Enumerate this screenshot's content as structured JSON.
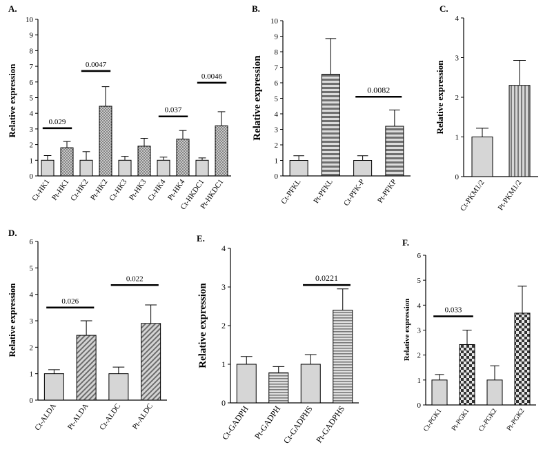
{
  "figure": {
    "panels": [
      {
        "id": "A",
        "label": "A.",
        "ylabel": "Relative expression",
        "ylim": [
          0,
          10
        ],
        "yticks": [
          0,
          1,
          2,
          3,
          4,
          5,
          6,
          7,
          8,
          9,
          10
        ],
        "categories": [
          "Ct-HK1",
          "Pt-HK1",
          "Ct-HK2",
          "Pt-HK2",
          "Ct-HK3",
          "Pt-HK3",
          "Ct-HK4",
          "Pt-HK4",
          "Ct-HKDC1",
          "Pt-HKDC1"
        ],
        "values": [
          1.0,
          1.8,
          1.0,
          4.45,
          1.0,
          1.9,
          1.0,
          2.35,
          1.0,
          3.2
        ],
        "errors": [
          0.3,
          0.4,
          0.55,
          1.25,
          0.25,
          0.5,
          0.2,
          0.55,
          0.15,
          0.9
        ],
        "patterns": [
          "plain",
          "dots",
          "plain",
          "dots",
          "plain",
          "dots",
          "plain",
          "dots",
          "plain",
          "dots"
        ],
        "significance": [
          {
            "from": 0,
            "to": 1,
            "y": 3.05,
            "label": "0.029"
          },
          {
            "from": 2,
            "to": 3,
            "y": 6.7,
            "label": "0.0047"
          },
          {
            "from": 6,
            "to": 7,
            "y": 3.8,
            "label": "0.037"
          },
          {
            "from": 8,
            "to": 9,
            "y": 5.95,
            "label": "0.0046"
          }
        ]
      },
      {
        "id": "B",
        "label": "B.",
        "ylabel": "Relative expression",
        "ylim": [
          0,
          10
        ],
        "yticks": [
          0,
          1,
          2,
          3,
          4,
          5,
          6,
          7,
          8,
          9,
          10
        ],
        "categories": [
          "Ct-PFKL",
          "Pt-PFKL",
          "Ct-PFK-P",
          "Pt-PFKP"
        ],
        "values": [
          1.0,
          6.55,
          1.0,
          3.2
        ],
        "errors": [
          0.3,
          2.3,
          0.3,
          1.05
        ],
        "patterns": [
          "plain",
          "hstripes",
          "plain",
          "hstripes"
        ],
        "significance": [
          {
            "from": 2,
            "to": 3,
            "y": 5.1,
            "label": "0.0082"
          }
        ]
      },
      {
        "id": "C",
        "label": "C.",
        "ylabel": "Relative expression",
        "ylim": [
          0,
          4
        ],
        "yticks": [
          0,
          1,
          2,
          3,
          4
        ],
        "categories": [
          "Ct-PKM1/2",
          "Pt-PKM1/2"
        ],
        "values": [
          1.0,
          2.3
        ],
        "errors": [
          0.22,
          0.63
        ],
        "patterns": [
          "plain",
          "vstripes"
        ],
        "significance": []
      },
      {
        "id": "D",
        "label": "D.",
        "ylabel": "Relative expression",
        "ylim": [
          0,
          6
        ],
        "yticks": [
          0,
          1,
          2,
          3,
          4,
          5,
          6
        ],
        "categories": [
          "Ct-ALDA",
          "Pt-ALDA",
          "Ct-ALDC",
          "Pt-ALDC"
        ],
        "values": [
          1.0,
          2.45,
          1.0,
          2.9
        ],
        "errors": [
          0.15,
          0.55,
          0.25,
          0.7
        ],
        "patterns": [
          "plain",
          "diagonal",
          "plain",
          "diagonal"
        ],
        "significance": [
          {
            "from": 0,
            "to": 1,
            "y": 3.5,
            "label": "0.026"
          },
          {
            "from": 2,
            "to": 3,
            "y": 4.35,
            "label": "0.022"
          }
        ]
      },
      {
        "id": "E",
        "label": "E.",
        "ylabel": "Relative expression",
        "ylim": [
          0,
          4
        ],
        "yticks": [
          0,
          1,
          2,
          3,
          4
        ],
        "categories": [
          "Ct-GADPH",
          "Pt-GADPH",
          "Ct-GADPHS",
          "Pt-GADPHS"
        ],
        "values": [
          1.0,
          0.78,
          1.0,
          2.4
        ],
        "errors": [
          0.2,
          0.16,
          0.25,
          0.55
        ],
        "patterns": [
          "plain",
          "hstripes-fine",
          "plain",
          "hstripes-fine"
        ],
        "significance": [
          {
            "from": 2,
            "to": 3,
            "y": 3.05,
            "label": "0.0221"
          }
        ]
      },
      {
        "id": "F",
        "label": "F.",
        "ylabel": "Relative expression",
        "ylim": [
          0,
          6
        ],
        "yticks": [
          0,
          1,
          2,
          3,
          4,
          5,
          6
        ],
        "categories": [
          "Ct-PGK1",
          "Pt-PGK1",
          "Ct-PGK2",
          "Pt-PGK2"
        ],
        "values": [
          1.0,
          2.42,
          1.0,
          3.68
        ],
        "errors": [
          0.22,
          0.58,
          0.57,
          1.08
        ],
        "patterns": [
          "plain",
          "checker",
          "plain",
          "checker"
        ],
        "significance": [
          {
            "from": 0,
            "to": 1,
            "y": 3.55,
            "label": "0.033"
          }
        ]
      }
    ]
  },
  "chart_data": [
    {
      "type": "bar",
      "title": "A.",
      "xlabel": "",
      "ylabel": "Relative expression",
      "ylim": [
        0,
        10
      ],
      "categories": [
        "Ct-HK1",
        "Pt-HK1",
        "Ct-HK2",
        "Pt-HK2",
        "Ct-HK3",
        "Pt-HK3",
        "Ct-HK4",
        "Pt-HK4",
        "Ct-HKDC1",
        "Pt-HKDC1"
      ],
      "values": [
        1.0,
        1.8,
        1.0,
        4.45,
        1.0,
        1.9,
        1.0,
        2.35,
        1.0,
        3.2
      ],
      "annotations": [
        "0.029",
        "0.0047",
        "0.037",
        "0.0046"
      ]
    },
    {
      "type": "bar",
      "title": "B.",
      "xlabel": "",
      "ylabel": "Relative expression",
      "ylim": [
        0,
        10
      ],
      "categories": [
        "Ct-PFKL",
        "Pt-PFKL",
        "Ct-PFK-P",
        "Pt-PFKP"
      ],
      "values": [
        1.0,
        6.55,
        1.0,
        3.2
      ],
      "annotations": [
        "0.0082"
      ]
    },
    {
      "type": "bar",
      "title": "C.",
      "xlabel": "",
      "ylabel": "Relative expression",
      "ylim": [
        0,
        4
      ],
      "categories": [
        "Ct-PKM1/2",
        "Pt-PKM1/2"
      ],
      "values": [
        1.0,
        2.3
      ]
    },
    {
      "type": "bar",
      "title": "D.",
      "xlabel": "",
      "ylabel": "Relative expression",
      "ylim": [
        0,
        6
      ],
      "categories": [
        "Ct-ALDA",
        "Pt-ALDA",
        "Ct-ALDC",
        "Pt-ALDC"
      ],
      "values": [
        1.0,
        2.45,
        1.0,
        2.9
      ],
      "annotations": [
        "0.026",
        "0.022"
      ]
    },
    {
      "type": "bar",
      "title": "E.",
      "xlabel": "",
      "ylabel": "Relative expression",
      "ylim": [
        0,
        4
      ],
      "categories": [
        "Ct-GADPH",
        "Pt-GADPH",
        "Ct-GADPHS",
        "Pt-GADPHS"
      ],
      "values": [
        1.0,
        0.78,
        1.0,
        2.4
      ],
      "annotations": [
        "0.0221"
      ]
    },
    {
      "type": "bar",
      "title": "F.",
      "xlabel": "",
      "ylabel": "Relative expression",
      "ylim": [
        0,
        6
      ],
      "categories": [
        "Ct-PGK1",
        "Pt-PGK1",
        "Ct-PGK2",
        "Pt-PGK2"
      ],
      "values": [
        1.0,
        2.42,
        1.0,
        3.68
      ],
      "annotations": [
        "0.033"
      ]
    }
  ]
}
